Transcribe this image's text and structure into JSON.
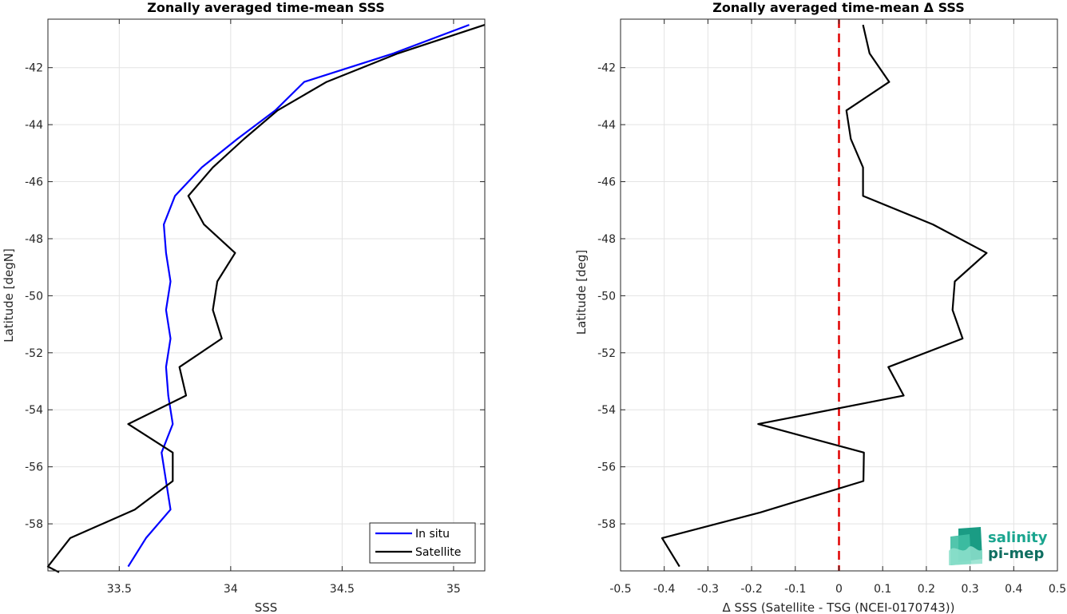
{
  "chart_data": [
    {
      "type": "line",
      "title": "Zonally averaged time-mean SSS",
      "xlabel": "SSS",
      "ylabel": "Latitude [degN]",
      "xlim": [
        33.18,
        35.14
      ],
      "ylim": [
        -59.65,
        -40.3
      ],
      "xticks": [
        "33.5",
        "34",
        "34.5",
        "35"
      ],
      "yticks": [
        "-42",
        "-44",
        "-46",
        "-48",
        "-50",
        "-52",
        "-54",
        "-56",
        "-58"
      ],
      "grid": true,
      "legend_position": "bottom-right",
      "series": [
        {
          "name": "In situ",
          "color": "#0000ff",
          "x": [
            35.07,
            34.73,
            34.33,
            34.2,
            34.03,
            33.87,
            33.75,
            33.7,
            33.71,
            33.73,
            33.71,
            33.73,
            33.71,
            33.72,
            33.74,
            33.69,
            33.71,
            33.73,
            33.62,
            33.54
          ],
          "y": [
            -40.5,
            -41.5,
            -42.5,
            -43.5,
            -44.5,
            -45.5,
            -46.5,
            -47.5,
            -48.5,
            -49.5,
            -50.5,
            -51.5,
            -52.5,
            -53.5,
            -54.5,
            -55.5,
            -56.5,
            -57.5,
            -58.5,
            -59.5
          ]
        },
        {
          "name": "Satellite",
          "color": "#000000",
          "x": [
            35.14,
            34.75,
            34.43,
            34.21,
            34.06,
            33.92,
            33.81,
            33.88,
            34.02,
            33.94,
            33.92,
            33.96,
            33.77,
            33.8,
            33.54,
            33.74,
            33.74,
            33.57,
            33.28,
            33.18,
            33.23
          ],
          "y": [
            -40.5,
            -41.5,
            -42.5,
            -43.5,
            -44.5,
            -45.5,
            -46.5,
            -47.5,
            -48.5,
            -49.5,
            -50.5,
            -51.5,
            -52.5,
            -53.5,
            -54.5,
            -55.5,
            -56.5,
            -57.5,
            -58.5,
            -59.5,
            -59.7
          ]
        }
      ]
    },
    {
      "type": "line",
      "title": "Zonally averaged time-mean Δ SSS",
      "xlabel": "Δ SSS (Satellite - TSG (NCEI-0170743))",
      "ylabel": "Latitude [deg]",
      "xlim": [
        -0.5,
        0.5
      ],
      "ylim": [
        -59.65,
        -40.3
      ],
      "xticks": [
        "-0.5",
        "-0.4",
        "-0.3",
        "-0.2",
        "-0.1",
        "0",
        "0.1",
        "0.2",
        "0.3",
        "0.4",
        "0.5"
      ],
      "yticks": [
        "-42",
        "-44",
        "-46",
        "-48",
        "-50",
        "-52",
        "-54",
        "-56",
        "-58"
      ],
      "grid": true,
      "reference_line": {
        "x": 0,
        "color": "#e00000",
        "style": "dashed"
      },
      "series": [
        {
          "color": "#000000",
          "x": [
            0.055,
            0.07,
            0.115,
            0.017,
            0.027,
            0.055,
            0.055,
            0.215,
            0.338,
            0.265,
            0.26,
            0.283,
            0.113,
            0.148,
            -0.185,
            0.057,
            0.056,
            -0.18,
            -0.405,
            -0.365
          ],
          "y": [
            -40.5,
            -41.5,
            -42.5,
            -43.5,
            -44.5,
            -45.5,
            -46.5,
            -47.5,
            -48.5,
            -49.5,
            -50.5,
            -51.5,
            -52.5,
            -53.5,
            -54.5,
            -55.5,
            -56.5,
            -57.6,
            -58.5,
            -59.5
          ]
        }
      ]
    }
  ],
  "logo": {
    "line1": "salinity",
    "line2": "pi-mep"
  }
}
